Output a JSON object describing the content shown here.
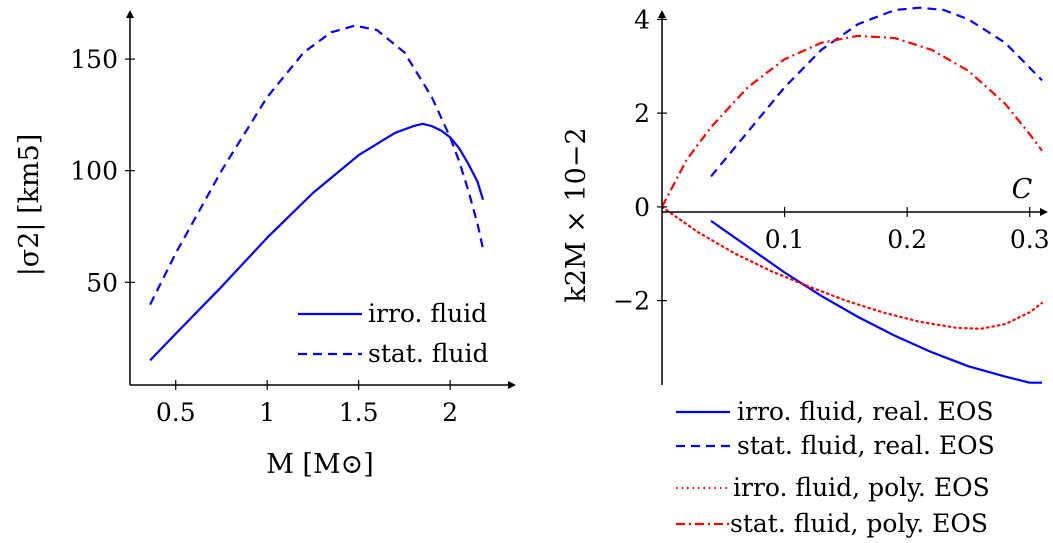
{
  "chart_data": [
    {
      "type": "line",
      "title": "",
      "xlabel": "M [M⊙]",
      "ylabel": "|σ2| [km5]",
      "xlim": [
        0.25,
        2.3
      ],
      "ylim": [
        4,
        172
      ],
      "xticks": [
        0.5,
        1,
        1.5,
        2
      ],
      "xtick_labels": [
        "0.5",
        "1",
        "1.5",
        "2"
      ],
      "yticks": [
        50,
        100,
        150
      ],
      "ytick_labels": [
        "50",
        "100",
        "150"
      ],
      "grid": false,
      "legend_position": "lower-right",
      "series": [
        {
          "name": "irro. fluid",
          "style": "solid",
          "color": "#0000ff",
          "x": [
            0.36,
            0.5,
            0.75,
            1.0,
            1.25,
            1.5,
            1.7,
            1.8,
            1.85,
            1.9,
            1.95,
            2.0,
            2.05,
            2.1,
            2.15,
            2.18
          ],
          "y": [
            15,
            27,
            48,
            70,
            90,
            107,
            117,
            120,
            121,
            120,
            118,
            115,
            110,
            103,
            95,
            87
          ]
        },
        {
          "name": "stat. fluid",
          "style": "dashed",
          "color": "#0000ff",
          "x": [
            0.36,
            0.5,
            0.75,
            1.0,
            1.2,
            1.35,
            1.48,
            1.6,
            1.75,
            1.9,
            2.0,
            2.05,
            2.1,
            2.15,
            2.18
          ],
          "y": [
            40,
            63,
            100,
            133,
            153,
            162,
            165,
            163,
            153,
            133,
            115,
            104,
            91,
            76,
            65
          ]
        }
      ]
    },
    {
      "type": "line",
      "title": "",
      "xlabel": "C",
      "ylabel": "k2M × 10−2",
      "xlim": [
        0,
        0.31
      ],
      "ylim": [
        -3.8,
        4.2
      ],
      "xticks": [
        0.1,
        0.2,
        0.3
      ],
      "xtick_labels": [
        "0.1",
        "0.2",
        "0.3"
      ],
      "yticks": [
        -2,
        0,
        2,
        4
      ],
      "ytick_labels": [
        "−2",
        "0",
        "2",
        "4"
      ],
      "grid": false,
      "legend_position": "below",
      "series": [
        {
          "name": "irro. fluid, real. EOS",
          "style": "solid",
          "color": "#0000ff",
          "x": [
            0.04,
            0.07,
            0.1,
            0.13,
            0.16,
            0.19,
            0.22,
            0.25,
            0.28,
            0.3,
            0.31
          ],
          "y": [
            -0.3,
            -0.85,
            -1.4,
            -1.9,
            -2.35,
            -2.75,
            -3.1,
            -3.4,
            -3.62,
            -3.75,
            -3.75
          ]
        },
        {
          "name": "stat. fluid, real. EOS",
          "style": "dashed",
          "color": "#0000ff",
          "x": [
            0.04,
            0.07,
            0.1,
            0.13,
            0.16,
            0.19,
            0.21,
            0.23,
            0.25,
            0.28,
            0.31
          ],
          "y": [
            0.65,
            1.6,
            2.55,
            3.35,
            3.9,
            4.2,
            4.25,
            4.2,
            4.0,
            3.5,
            2.7
          ]
        },
        {
          "name": "irro. fluid, poly. EOS",
          "style": "dotted",
          "color": "#ff0000",
          "x": [
            0.0,
            0.03,
            0.06,
            0.09,
            0.12,
            0.15,
            0.18,
            0.21,
            0.24,
            0.26,
            0.28,
            0.3,
            0.31
          ],
          "y": [
            0,
            -0.55,
            -1.0,
            -1.38,
            -1.7,
            -2.0,
            -2.25,
            -2.45,
            -2.58,
            -2.6,
            -2.5,
            -2.25,
            -2.05
          ]
        },
        {
          "name": "stat. fluid, poly. EOS",
          "style": "dashdot",
          "color": "#ff0000",
          "x": [
            0.0,
            0.02,
            0.04,
            0.07,
            0.1,
            0.13,
            0.16,
            0.19,
            0.22,
            0.25,
            0.28,
            0.3,
            0.31
          ],
          "y": [
            0,
            1.0,
            1.7,
            2.55,
            3.15,
            3.5,
            3.65,
            3.6,
            3.35,
            2.9,
            2.2,
            1.55,
            1.2
          ]
        }
      ]
    }
  ]
}
